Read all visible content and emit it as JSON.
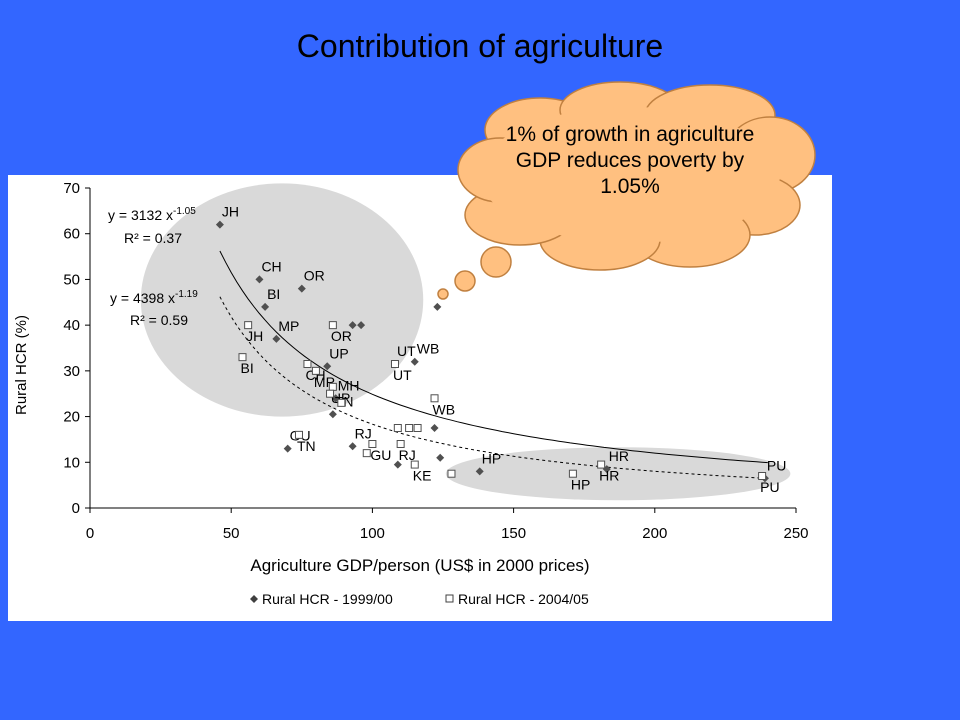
{
  "title": "Contribution of agriculture",
  "callout": {
    "text": "1% of growth in agriculture GDP reduces poverty by 1.05%",
    "fill": "#ffc080"
  },
  "highlight_color": "#d9d9d9",
  "chart_data": {
    "type": "scatter",
    "title": "",
    "xlabel": "Agriculture GDP/person (US$ in 2000 prices)",
    "ylabel": "Rural HCR (%)",
    "xlim": [
      0,
      250
    ],
    "ylim": [
      0,
      70
    ],
    "xticks": [
      0,
      50,
      100,
      150,
      200,
      250
    ],
    "yticks": [
      0,
      10,
      20,
      30,
      40,
      50,
      60,
      70
    ],
    "grid": false,
    "legend_position": "bottom",
    "series": [
      {
        "name": "Rural HCR - 1999/00",
        "marker": "diamond-filled",
        "points": [
          {
            "x": 46,
            "y": 62,
            "label": "JH"
          },
          {
            "x": 60,
            "y": 50,
            "label": "CH"
          },
          {
            "x": 62,
            "y": 44,
            "label": "BI"
          },
          {
            "x": 75,
            "y": 48,
            "label": "OR"
          },
          {
            "x": 66,
            "y": 37,
            "label": "MP"
          },
          {
            "x": 84,
            "y": 31,
            "label": "UP"
          },
          {
            "x": 87,
            "y": 24,
            "label": "MH"
          },
          {
            "x": 86,
            "y": 20.5,
            "label": "TN"
          },
          {
            "x": 70,
            "y": 13,
            "label": "GU"
          },
          {
            "x": 93,
            "y": 13.5,
            "label": "RJ"
          },
          {
            "x": 109,
            "y": 9.5,
            "label": ""
          },
          {
            "x": 108,
            "y": 31.5,
            "label": "UT"
          },
          {
            "x": 115,
            "y": 32,
            "label": "WB"
          },
          {
            "x": 123,
            "y": 44,
            "label": ""
          },
          {
            "x": 122,
            "y": 17.5,
            "label": ""
          },
          {
            "x": 124,
            "y": 11,
            "label": ""
          },
          {
            "x": 93,
            "y": 40,
            "label": ""
          },
          {
            "x": 96,
            "y": 40,
            "label": ""
          },
          {
            "x": 138,
            "y": 8,
            "label": "HP"
          },
          {
            "x": 183,
            "y": 8.5,
            "label": "HR"
          },
          {
            "x": 239,
            "y": 6.5,
            "label": "PU"
          }
        ]
      },
      {
        "name": "Rural HCR - 2004/05",
        "marker": "square-open",
        "points": [
          {
            "x": 56,
            "y": 40,
            "label": "JH"
          },
          {
            "x": 54,
            "y": 33,
            "label": "BI"
          },
          {
            "x": 77,
            "y": 31.5,
            "label": "CH"
          },
          {
            "x": 80,
            "y": 30,
            "label": "MP"
          },
          {
            "x": 86,
            "y": 40,
            "label": "OR"
          },
          {
            "x": 86,
            "y": 26.5,
            "label": "UP"
          },
          {
            "x": 85,
            "y": 25,
            "label": ""
          },
          {
            "x": 89,
            "y": 23,
            "label": ""
          },
          {
            "x": 74,
            "y": 16,
            "label": "TN"
          },
          {
            "x": 100,
            "y": 14,
            "label": "GU"
          },
          {
            "x": 98,
            "y": 12,
            "label": ""
          },
          {
            "x": 108,
            "y": 31.5,
            "label": "UT"
          },
          {
            "x": 109,
            "y": 17.5,
            "label": ""
          },
          {
            "x": 113,
            "y": 17.5,
            "label": ""
          },
          {
            "x": 116,
            "y": 17.5,
            "label": ""
          },
          {
            "x": 110,
            "y": 14,
            "label": "RJ"
          },
          {
            "x": 115,
            "y": 9.5,
            "label": "KE"
          },
          {
            "x": 122,
            "y": 24,
            "label": "WB"
          },
          {
            "x": 128,
            "y": 7.5,
            "label": ""
          },
          {
            "x": 171,
            "y": 7.5,
            "label": "HP"
          },
          {
            "x": 181,
            "y": 9.5,
            "label": "HR"
          },
          {
            "x": 238,
            "y": 7,
            "label": "PU"
          }
        ]
      }
    ],
    "trendlines": [
      {
        "series": "Rural HCR - 1999/00",
        "style": "solid",
        "a": 3132,
        "b": -1.05,
        "equation": "y = 3132 x",
        "exponent": "-1.05",
        "r2": "R² = 0.37"
      },
      {
        "series": "Rural HCR - 2004/05",
        "style": "dotted",
        "a": 4398,
        "b": -1.19,
        "equation": "y = 4398 x",
        "exponent": "-1.19",
        "r2": "R² = 0.59"
      }
    ]
  }
}
